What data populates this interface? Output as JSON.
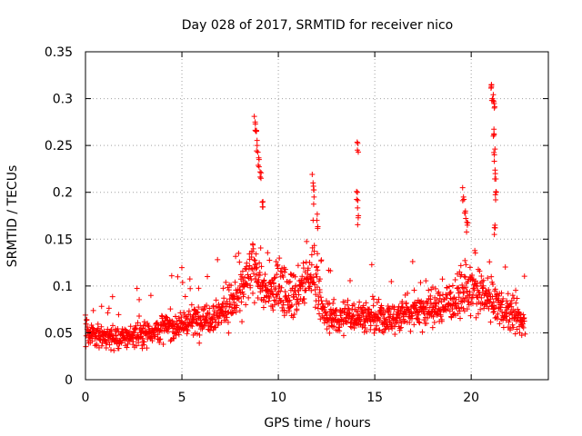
{
  "chart_data": {
    "type": "scatter",
    "title": "Day 028 of 2017, SRMTID for receiver nico",
    "xlabel": "GPS time / hours",
    "ylabel": "SRMTID / TECUs",
    "xlim": [
      0,
      24
    ],
    "ylim": [
      0,
      0.35
    ],
    "x_ticks": [
      0,
      5,
      10,
      15,
      20
    ],
    "x_tick_labels": [
      "0",
      "5",
      "10",
      "15",
      "20"
    ],
    "y_ticks": [
      0,
      0.05,
      0.1,
      0.15,
      0.2,
      0.25,
      0.3,
      0.35
    ],
    "y_tick_labels": [
      "0",
      "0.05",
      "0.1",
      "0.15",
      "0.2",
      "0.25",
      "0.3",
      "0.35"
    ],
    "grid": true,
    "marker": "+",
    "color": "#ff0000",
    "data_range": [
      0,
      22.8
    ],
    "trend": [
      [
        0,
        0.05
      ],
      [
        1,
        0.046
      ],
      [
        2,
        0.045
      ],
      [
        3,
        0.05
      ],
      [
        4,
        0.055
      ],
      [
        5,
        0.06
      ],
      [
        6,
        0.065
      ],
      [
        7,
        0.072
      ],
      [
        8,
        0.09
      ],
      [
        8.8,
        0.12
      ],
      [
        9.4,
        0.09
      ],
      [
        10,
        0.1
      ],
      [
        11,
        0.09
      ],
      [
        11.9,
        0.12
      ],
      [
        12.3,
        0.07
      ],
      [
        13,
        0.065
      ],
      [
        14,
        0.07
      ],
      [
        15,
        0.065
      ],
      [
        16,
        0.065
      ],
      [
        17,
        0.075
      ],
      [
        18,
        0.075
      ],
      [
        19,
        0.085
      ],
      [
        20,
        0.095
      ],
      [
        21,
        0.085
      ],
      [
        22,
        0.07
      ],
      [
        22.8,
        0.06
      ]
    ],
    "highlights": [
      {
        "x": 8.8,
        "y": 0.275
      },
      {
        "x": 8.85,
        "y": 0.265
      },
      {
        "x": 8.9,
        "y": 0.25
      },
      {
        "x": 9.0,
        "y": 0.235
      },
      {
        "x": 9.1,
        "y": 0.215
      },
      {
        "x": 9.2,
        "y": 0.19
      },
      {
        "x": 11.8,
        "y": 0.21
      },
      {
        "x": 11.85,
        "y": 0.195
      },
      {
        "x": 12.0,
        "y": 0.17
      },
      {
        "x": 14.1,
        "y": 0.245
      },
      {
        "x": 14.1,
        "y": 0.2
      },
      {
        "x": 14.15,
        "y": 0.175
      },
      {
        "x": 19.6,
        "y": 0.195
      },
      {
        "x": 19.7,
        "y": 0.18
      },
      {
        "x": 19.8,
        "y": 0.165
      },
      {
        "x": 21.05,
        "y": 0.315
      },
      {
        "x": 21.1,
        "y": 0.3
      },
      {
        "x": 21.2,
        "y": 0.29
      },
      {
        "x": 21.15,
        "y": 0.26
      },
      {
        "x": 21.2,
        "y": 0.24
      },
      {
        "x": 21.25,
        "y": 0.22
      },
      {
        "x": 21.3,
        "y": 0.2
      },
      {
        "x": 21.2,
        "y": 0.155
      }
    ]
  }
}
